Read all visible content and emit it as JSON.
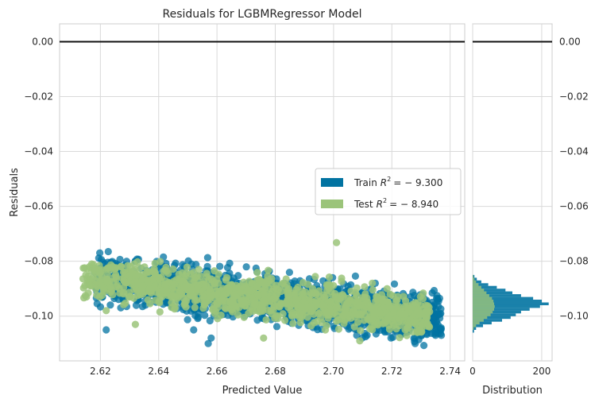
{
  "chart_data": {
    "type": "scatter",
    "title": "Residuals for LGBMRegressor Model",
    "xlabel": "Predicted Value",
    "ylabel": "Residuals",
    "xlim": [
      2.606,
      2.745
    ],
    "ylim": [
      -0.1163,
      0.0065
    ],
    "x_ticks": [
      2.62,
      2.64,
      2.66,
      2.68,
      2.7,
      2.72,
      2.74
    ],
    "x_tick_labels": [
      "2.62",
      "2.64",
      "2.66",
      "2.68",
      "2.70",
      "2.72",
      "2.74"
    ],
    "y_ticks": [
      0.0,
      -0.02,
      -0.04,
      -0.06,
      -0.08,
      -0.1
    ],
    "y_tick_labels": [
      "0.00",
      "−0.02",
      "−0.04",
      "−0.06",
      "−0.08",
      "−0.10"
    ],
    "grid": true,
    "zero_line": 0.0,
    "legend_position": "center-right",
    "trend": {
      "x_start": 2.615,
      "x_end": 2.74,
      "y_start": -0.086,
      "y_end": -0.101
    },
    "series": [
      {
        "name": "Train R² = −9.300",
        "legend_label": "Train",
        "legend_value": "= − 9.300",
        "color": "#0173a1",
        "opacity": 0.75,
        "spread": 0.0042,
        "x_range": [
          2.618,
          2.737
        ],
        "n_points": 1500,
        "outliers": [
          {
            "x": 2.622,
            "y": -0.105
          },
          {
            "x": 2.652,
            "y": -0.105
          },
          {
            "x": 2.657,
            "y": -0.11
          },
          {
            "x": 2.728,
            "y": -0.11
          },
          {
            "x": 2.735,
            "y": -0.107
          },
          {
            "x": 2.737,
            "y": -0.107
          },
          {
            "x": 2.629,
            "y": -0.08
          },
          {
            "x": 2.632,
            "y": -0.08
          },
          {
            "x": 2.693,
            "y": -0.09
          },
          {
            "x": 2.658,
            "y": -0.108
          }
        ]
      },
      {
        "name": "Test R² = −8.940",
        "legend_label": "Test",
        "legend_value": "= − 8.940",
        "color": "#9bc47a",
        "opacity": 0.85,
        "spread": 0.0036,
        "x_range": [
          2.614,
          2.733
        ],
        "n_points": 1100,
        "outliers": [
          {
            "x": 2.701,
            "y": -0.0732
          },
          {
            "x": 2.615,
            "y": -0.085
          },
          {
            "x": 2.617,
            "y": -0.081
          },
          {
            "x": 2.676,
            "y": -0.108
          },
          {
            "x": 2.632,
            "y": -0.103
          },
          {
            "x": 2.622,
            "y": -0.098
          },
          {
            "x": 2.709,
            "y": -0.109
          },
          {
            "x": 2.728,
            "y": -0.102
          }
        ]
      }
    ],
    "distribution": {
      "xlabel": "Distribution",
      "x_ticks": [
        0,
        200
      ],
      "x_tick_labels": [
        "0",
        "200"
      ],
      "xlim": [
        0,
        230
      ],
      "bin_width": 0.001,
      "train_counts": [
        {
          "y": -0.1055,
          "count": 4
        },
        {
          "y": -0.1045,
          "count": 10
        },
        {
          "y": -0.1035,
          "count": 30
        },
        {
          "y": -0.1025,
          "count": 55
        },
        {
          "y": -0.1015,
          "count": 85
        },
        {
          "y": -0.1005,
          "count": 110
        },
        {
          "y": -0.0995,
          "count": 125
        },
        {
          "y": -0.0985,
          "count": 140
        },
        {
          "y": -0.0975,
          "count": 165
        },
        {
          "y": -0.0965,
          "count": 195
        },
        {
          "y": -0.0955,
          "count": 220
        },
        {
          "y": -0.0945,
          "count": 200
        },
        {
          "y": -0.0935,
          "count": 175
        },
        {
          "y": -0.0925,
          "count": 140
        },
        {
          "y": -0.0915,
          "count": 115
        },
        {
          "y": -0.0905,
          "count": 95
        },
        {
          "y": -0.0895,
          "count": 70
        },
        {
          "y": -0.0885,
          "count": 45
        },
        {
          "y": -0.0875,
          "count": 25
        },
        {
          "y": -0.0865,
          "count": 12
        },
        {
          "y": -0.0855,
          "count": 5
        }
      ],
      "test_counts": [
        {
          "y": -0.1045,
          "count": 3
        },
        {
          "y": -0.1035,
          "count": 10
        },
        {
          "y": -0.1025,
          "count": 20
        },
        {
          "y": -0.1015,
          "count": 32
        },
        {
          "y": -0.1005,
          "count": 42
        },
        {
          "y": -0.0995,
          "count": 52
        },
        {
          "y": -0.0985,
          "count": 58
        },
        {
          "y": -0.0975,
          "count": 62
        },
        {
          "y": -0.0965,
          "count": 64
        },
        {
          "y": -0.0955,
          "count": 62
        },
        {
          "y": -0.0945,
          "count": 60
        },
        {
          "y": -0.0935,
          "count": 56
        },
        {
          "y": -0.0925,
          "count": 48
        },
        {
          "y": -0.0915,
          "count": 40
        },
        {
          "y": -0.0905,
          "count": 33
        },
        {
          "y": -0.0895,
          "count": 25
        },
        {
          "y": -0.0885,
          "count": 17
        },
        {
          "y": -0.0875,
          "count": 10
        },
        {
          "y": -0.0865,
          "count": 5
        },
        {
          "y": -0.0855,
          "count": 2
        }
      ]
    }
  }
}
